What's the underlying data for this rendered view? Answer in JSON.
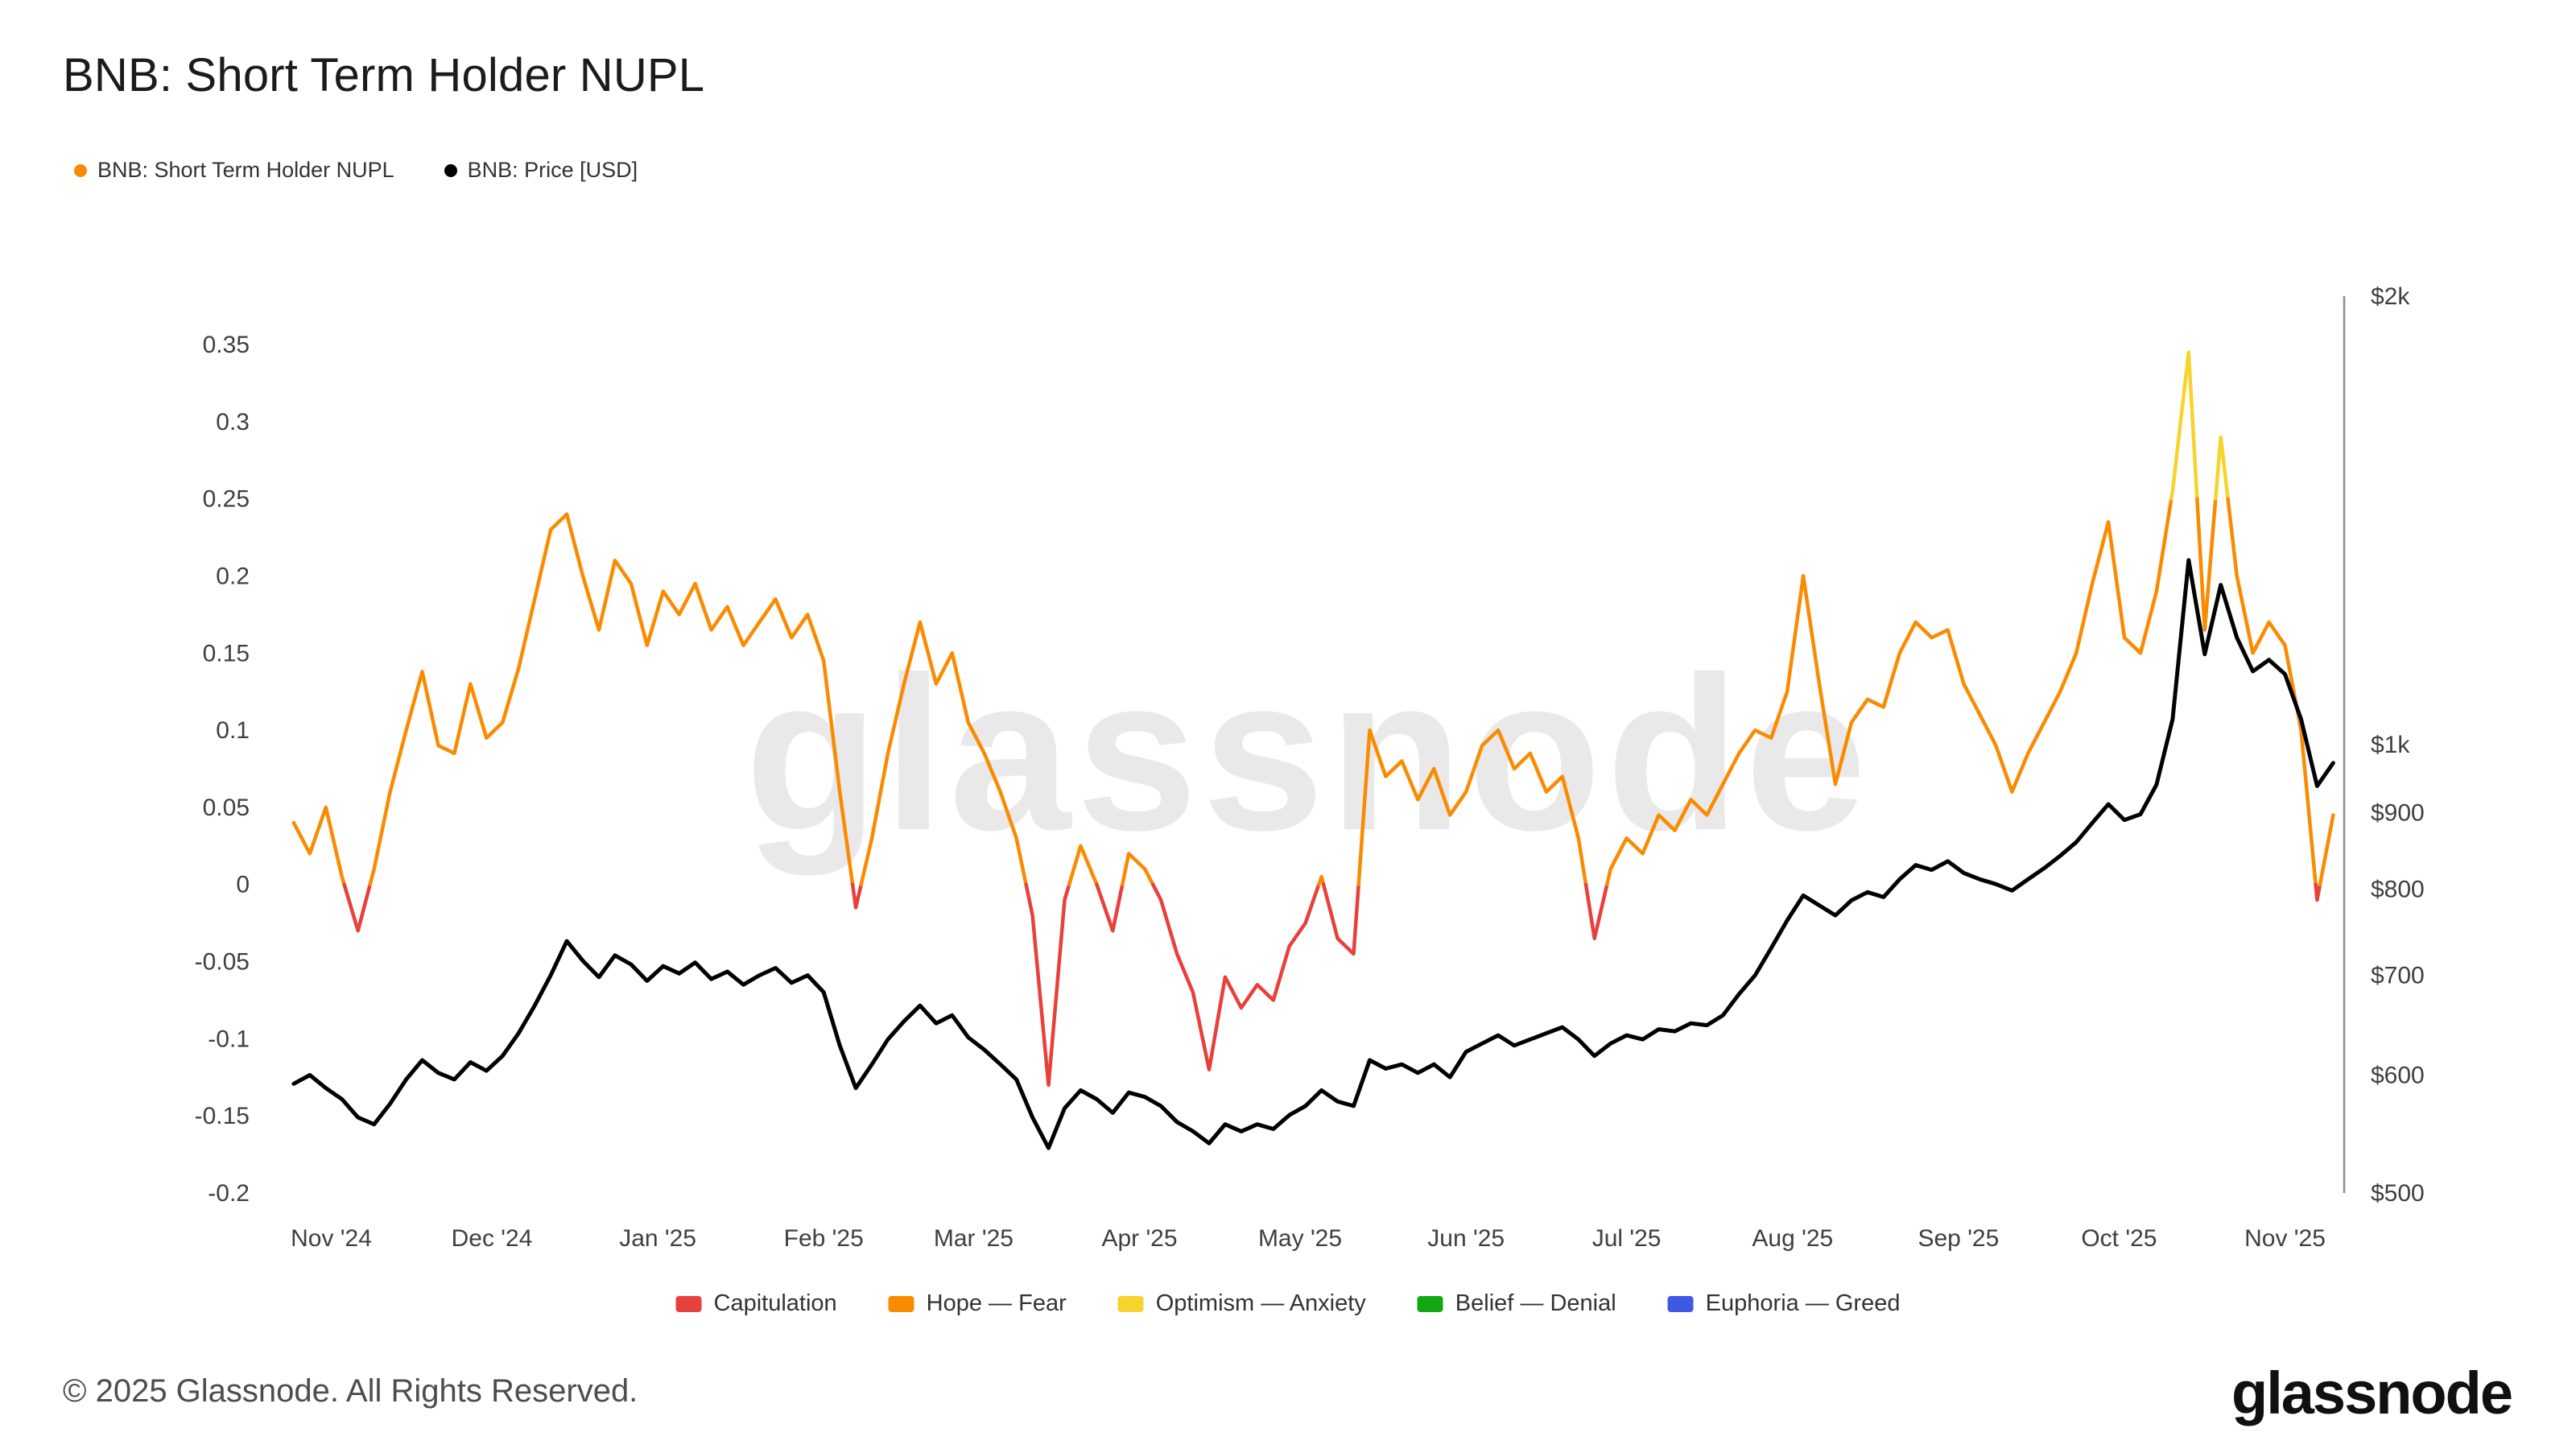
{
  "header": {
    "title": "BNB: Short Term Holder NUPL"
  },
  "top_legend": [
    {
      "label": "BNB: Short Term Holder NUPL",
      "color": "#fa8b00"
    },
    {
      "label": "BNB: Price [USD]",
      "color": "#000000"
    }
  ],
  "watermark": "glassnode",
  "footer": {
    "copyright": "© 2025 Glassnode. All Rights Reserved.",
    "logo": "glassnode"
  },
  "chart_data": {
    "type": "line",
    "title": "BNB: Short Term Holder NUPL",
    "day_start": 0,
    "day_step": 3,
    "x_ticks": [
      {
        "day": 7,
        "label": "Nov '24"
      },
      {
        "day": 37,
        "label": "Dec '24"
      },
      {
        "day": 68,
        "label": "Jan '25"
      },
      {
        "day": 99,
        "label": "Feb '25"
      },
      {
        "day": 127,
        "label": "Mar '25"
      },
      {
        "day": 158,
        "label": "Apr '25"
      },
      {
        "day": 188,
        "label": "May '25"
      },
      {
        "day": 219,
        "label": "Jun '25"
      },
      {
        "day": 249,
        "label": "Jul '25"
      },
      {
        "day": 280,
        "label": "Aug '25"
      },
      {
        "day": 311,
        "label": "Sep '25"
      },
      {
        "day": 341,
        "label": "Oct '25"
      },
      {
        "day": 372,
        "label": "Nov '25"
      }
    ],
    "left_axis": {
      "scale": "linear",
      "range": [
        -0.2,
        0.3813
      ],
      "ticks": [
        {
          "v": 0.35,
          "label": "0.35"
        },
        {
          "v": 0.3,
          "label": "0.3"
        },
        {
          "v": 0.25,
          "label": "0.25"
        },
        {
          "v": 0.2,
          "label": "0.2"
        },
        {
          "v": 0.15,
          "label": "0.15"
        },
        {
          "v": 0.1,
          "label": "0.1"
        },
        {
          "v": 0.05,
          "label": "0.05"
        },
        {
          "v": 0,
          "label": "0"
        },
        {
          "v": -0.05,
          "label": "-0.05"
        },
        {
          "v": -0.1,
          "label": "-0.1"
        },
        {
          "v": -0.15,
          "label": "-0.15"
        },
        {
          "v": -0.2,
          "label": "-0.2"
        }
      ]
    },
    "right_axis": {
      "scale": "log",
      "range": [
        500,
        2000
      ],
      "ticks": [
        {
          "v": 2000,
          "label": "$2k"
        },
        {
          "v": 1000,
          "label": "$1k"
        },
        {
          "v": 900,
          "label": "$900"
        },
        {
          "v": 800,
          "label": "$800"
        },
        {
          "v": 700,
          "label": "$700"
        },
        {
          "v": 600,
          "label": "$600"
        },
        {
          "v": 500,
          "label": "$500"
        }
      ]
    },
    "bands": [
      {
        "label": "Capitulation",
        "color": "#e8403a",
        "max": 0
      },
      {
        "label": "Hope — Fear",
        "color": "#fa8b00",
        "max": 0.25
      },
      {
        "label": "Optimism — Anxiety",
        "color": "#f6d32d",
        "max": 0.5
      },
      {
        "label": "Belief — Denial",
        "color": "#13a813",
        "max": 0.75
      },
      {
        "label": "Euphoria — Greed",
        "color": "#3f59e4",
        "max": 1
      }
    ],
    "series": [
      {
        "name": "BNB: Short Term Holder NUPL",
        "values": [
          0.04,
          0.02,
          0.05,
          0.005,
          -0.03,
          0.01,
          0.06,
          0.1,
          0.138,
          0.09,
          0.085,
          0.13,
          0.095,
          0.105,
          0.14,
          0.185,
          0.23,
          0.24,
          0.2,
          0.165,
          0.21,
          0.195,
          0.155,
          0.19,
          0.175,
          0.195,
          0.165,
          0.18,
          0.155,
          0.17,
          0.185,
          0.16,
          0.175,
          0.145,
          0.06,
          -0.015,
          0.03,
          0.085,
          0.13,
          0.17,
          0.13,
          0.15,
          0.105,
          0.085,
          0.06,
          0.03,
          -0.02,
          -0.13,
          -0.01,
          0.025,
          0.0,
          -0.03,
          0.02,
          0.01,
          -0.01,
          -0.045,
          -0.07,
          -0.12,
          -0.06,
          -0.08,
          -0.065,
          -0.075,
          -0.04,
          -0.025,
          0.005,
          -0.035,
          -0.045,
          0.1,
          0.07,
          0.08,
          0.055,
          0.075,
          0.045,
          0.06,
          0.09,
          0.1,
          0.075,
          0.085,
          0.06,
          0.07,
          0.03,
          -0.035,
          0.01,
          0.03,
          0.02,
          0.045,
          0.035,
          0.055,
          0.045,
          0.065,
          0.085,
          0.1,
          0.095,
          0.125,
          0.2,
          0.13,
          0.065,
          0.105,
          0.12,
          0.115,
          0.15,
          0.17,
          0.16,
          0.165,
          0.13,
          0.11,
          0.09,
          0.06,
          0.085,
          0.105,
          0.125,
          0.15,
          0.195,
          0.235,
          0.16,
          0.15,
          0.19,
          0.255,
          0.345,
          0.165,
          0.29,
          0.2,
          0.15,
          0.17,
          0.155,
          0.1,
          -0.01,
          0.045
        ]
      },
      {
        "name": "BNB: Price [USD]",
        "values": [
          592,
          600,
          588,
          578,
          562,
          556,
          574,
          596,
          614,
          602,
          596,
          612,
          604,
          618,
          640,
          668,
          700,
          738,
          716,
          698,
          722,
          712,
          694,
          710,
          702,
          714,
          696,
          704,
          690,
          700,
          708,
          692,
          700,
          682,
          628,
          588,
          610,
          634,
          652,
          668,
          650,
          658,
          636,
          624,
          610,
          596,
          562,
          536,
          570,
          586,
          578,
          566,
          584,
          580,
          572,
          558,
          550,
          540,
          556,
          550,
          556,
          552,
          564,
          572,
          586,
          576,
          572,
          614,
          606,
          610,
          602,
          610,
          598,
          622,
          630,
          638,
          628,
          634,
          640,
          646,
          634,
          618,
          630,
          638,
          634,
          644,
          642,
          650,
          648,
          658,
          680,
          700,
          730,
          762,
          792,
          780,
          768,
          786,
          796,
          790,
          812,
          830,
          824,
          835,
          820,
          812,
          806,
          798,
          812,
          826,
          842,
          860,
          886,
          912,
          890,
          898,
          940,
          1040,
          1330,
          1150,
          1280,
          1180,
          1120,
          1140,
          1115,
          1040,
          938,
          972
        ]
      }
    ]
  }
}
